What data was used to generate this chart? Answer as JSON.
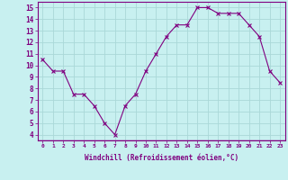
{
  "x": [
    0,
    1,
    2,
    3,
    4,
    5,
    6,
    7,
    8,
    9,
    10,
    11,
    12,
    13,
    14,
    15,
    16,
    17,
    18,
    19,
    20,
    21,
    22,
    23
  ],
  "y": [
    10.5,
    9.5,
    9.5,
    7.5,
    7.5,
    6.5,
    5.0,
    4.0,
    6.5,
    7.5,
    9.5,
    11.0,
    12.5,
    13.5,
    13.5,
    15.0,
    15.0,
    14.5,
    14.5,
    14.5,
    13.5,
    12.5,
    9.5,
    8.5
  ],
  "line_color": "#800080",
  "marker": "x",
  "marker_size": 3,
  "marker_linewidth": 0.8,
  "bg_color": "#c8f0f0",
  "grid_color": "#aad8d8",
  "xlabel": "Windchill (Refroidissement éolien,°C)",
  "xlabel_color": "#800080",
  "tick_color": "#800080",
  "xlim": [
    -0.5,
    23.5
  ],
  "ylim": [
    3.5,
    15.5
  ],
  "yticks": [
    4,
    5,
    6,
    7,
    8,
    9,
    10,
    11,
    12,
    13,
    14,
    15
  ],
  "xtick_labels": [
    "0",
    "1",
    "2",
    "3",
    "4",
    "5",
    "6",
    "7",
    "8",
    "9",
    "10",
    "11",
    "12",
    "13",
    "14",
    "15",
    "16",
    "17",
    "18",
    "19",
    "20",
    "21",
    "22",
    "23"
  ],
  "spine_color": "#800080",
  "linewidth": 0.8
}
